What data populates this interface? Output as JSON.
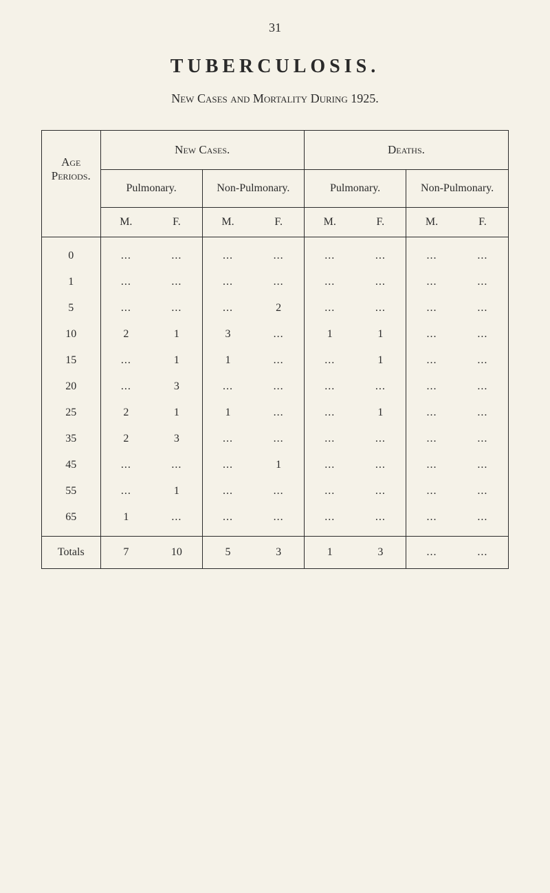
{
  "page_number": "31",
  "title": "TUBERCULOSIS.",
  "subtitle": "New Cases and Mortality During 1925.",
  "headers": {
    "age": "Age Periods.",
    "new_cases": "New Cases.",
    "deaths": "Deaths.",
    "pulmonary": "Pulmonary.",
    "non_pulmonary": "Non-Pulmonary.",
    "m": "M.",
    "f": "F."
  },
  "rows": [
    {
      "age": "0",
      "p_m": "...",
      "p_f": "...",
      "np_m": "...",
      "np_f": "...",
      "dp_m": "...",
      "dp_f": "...",
      "dnp_m": "...",
      "dnp_f": "..."
    },
    {
      "age": "1",
      "p_m": "...",
      "p_f": "...",
      "np_m": "...",
      "np_f": "...",
      "dp_m": "...",
      "dp_f": "...",
      "dnp_m": "...",
      "dnp_f": "..."
    },
    {
      "age": "5",
      "p_m": "...",
      "p_f": "...",
      "np_m": "...",
      "np_f": "2",
      "dp_m": "...",
      "dp_f": "...",
      "dnp_m": "...",
      "dnp_f": "..."
    },
    {
      "age": "10",
      "p_m": "2",
      "p_f": "1",
      "np_m": "3",
      "np_f": "...",
      "dp_m": "1",
      "dp_f": "1",
      "dnp_m": "...",
      "dnp_f": "..."
    },
    {
      "age": "15",
      "p_m": "...",
      "p_f": "1",
      "np_m": "1",
      "np_f": "...",
      "dp_m": "...",
      "dp_f": "1",
      "dnp_m": "...",
      "dnp_f": "..."
    },
    {
      "age": "20",
      "p_m": "...",
      "p_f": "3",
      "np_m": "...",
      "np_f": "...",
      "dp_m": "...",
      "dp_f": "...",
      "dnp_m": "...",
      "dnp_f": "..."
    },
    {
      "age": "25",
      "p_m": "2",
      "p_f": "1",
      "np_m": "1",
      "np_f": "...",
      "dp_m": "...",
      "dp_f": "1",
      "dnp_m": "...",
      "dnp_f": "..."
    },
    {
      "age": "35",
      "p_m": "2",
      "p_f": "3",
      "np_m": "...",
      "np_f": "...",
      "dp_m": "...",
      "dp_f": "...",
      "dnp_m": "...",
      "dnp_f": "..."
    },
    {
      "age": "45",
      "p_m": "...",
      "p_f": "...",
      "np_m": "...",
      "np_f": "1",
      "dp_m": "...",
      "dp_f": "...",
      "dnp_m": "...",
      "dnp_f": "..."
    },
    {
      "age": "55",
      "p_m": "...",
      "p_f": "1",
      "np_m": "...",
      "np_f": "...",
      "dp_m": "...",
      "dp_f": "...",
      "dnp_m": "...",
      "dnp_f": "..."
    },
    {
      "age": "65",
      "p_m": "1",
      "p_f": "...",
      "np_m": "...",
      "np_f": "...",
      "dp_m": "...",
      "dp_f": "...",
      "dnp_m": "...",
      "dnp_f": "..."
    }
  ],
  "totals": {
    "label": "Totals",
    "p_m": "7",
    "p_f": "10",
    "np_m": "5",
    "np_f": "3",
    "dp_m": "1",
    "dp_f": "3",
    "dnp_m": "...",
    "dnp_f": "..."
  }
}
